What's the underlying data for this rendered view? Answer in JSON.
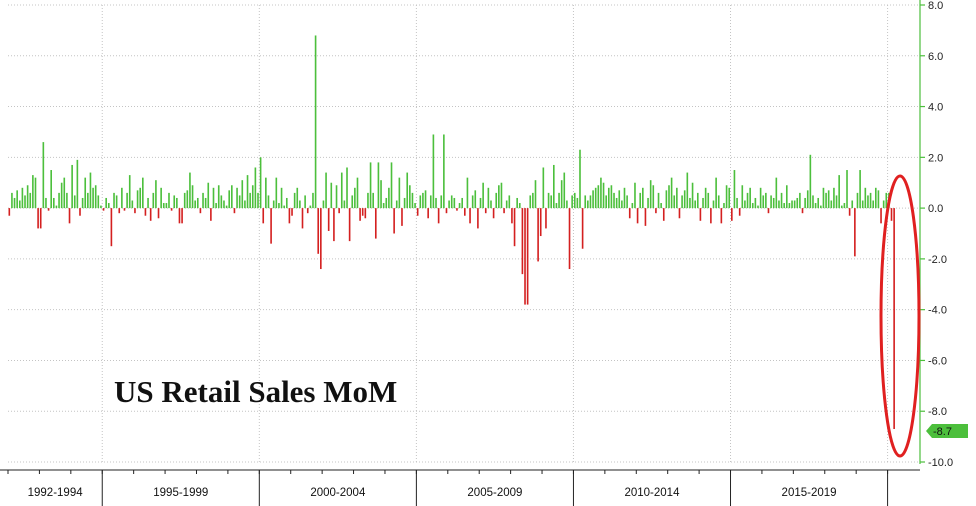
{
  "chart_data": {
    "type": "bar",
    "title": "US Retail Sales MoM",
    "xlabel": "",
    "ylabel": "",
    "ylim": [
      -10.0,
      8.0
    ],
    "yticks": [
      8.0,
      6.0,
      4.0,
      2.0,
      0.0,
      -2.0,
      -4.0,
      -6.0,
      -8.0,
      -10.0
    ],
    "ytick_labels": [
      "8.0",
      "6.0",
      "4.0",
      "2.0",
      "0.0",
      "-2.0",
      "-4.0",
      "-6.0",
      "-8.0",
      "-10.0"
    ],
    "x_start": "1992-01",
    "x_end": "2020-12",
    "period_labels": [
      "1992-1994",
      "1995-1999",
      "2000-2004",
      "2005-2009",
      "2010-2014",
      "2015-2019"
    ],
    "last_value_label": "-8.7",
    "positive_color": "#4cbf3c",
    "negative_color": "#d42020",
    "axis_color": "#4cbf3c",
    "highlight": {
      "shape": "ellipse",
      "color": "#e02020",
      "around_month": "2020-03"
    },
    "months": [
      "1992-01",
      "1992-02",
      "1992-03",
      "1992-04",
      "1992-05",
      "1992-06",
      "1992-07",
      "1992-08",
      "1992-09",
      "1992-10",
      "1992-11",
      "1992-12",
      "1993-01",
      "1993-02",
      "1993-03",
      "1993-04",
      "1993-05",
      "1993-06",
      "1993-07",
      "1993-08",
      "1993-09",
      "1993-10",
      "1993-11",
      "1993-12",
      "1994-01",
      "1994-02",
      "1994-03",
      "1994-04",
      "1994-05",
      "1994-06",
      "1994-07",
      "1994-08",
      "1994-09",
      "1994-10",
      "1994-11",
      "1994-12",
      "1995-01",
      "1995-02",
      "1995-03",
      "1995-04",
      "1995-05",
      "1995-06",
      "1995-07",
      "1995-08",
      "1995-09",
      "1995-10",
      "1995-11",
      "1995-12",
      "1996-01",
      "1996-02",
      "1996-03",
      "1996-04",
      "1996-05",
      "1996-06",
      "1996-07",
      "1996-08",
      "1996-09",
      "1996-10",
      "1996-11",
      "1996-12",
      "1997-01",
      "1997-02",
      "1997-03",
      "1997-04",
      "1997-05",
      "1997-06",
      "1997-07",
      "1997-08",
      "1997-09",
      "1997-10",
      "1997-11",
      "1997-12",
      "1998-01",
      "1998-02",
      "1998-03",
      "1998-04",
      "1998-05",
      "1998-06",
      "1998-07",
      "1998-08",
      "1998-09",
      "1998-10",
      "1998-11",
      "1998-12",
      "1999-01",
      "1999-02",
      "1999-03",
      "1999-04",
      "1999-05",
      "1999-06",
      "1999-07",
      "1999-08",
      "1999-09",
      "1999-10",
      "1999-11",
      "1999-12",
      "2000-01",
      "2000-02",
      "2000-03",
      "2000-04",
      "2000-05",
      "2000-06",
      "2000-07",
      "2000-08",
      "2000-09",
      "2000-10",
      "2000-11",
      "2000-12",
      "2001-01",
      "2001-02",
      "2001-03",
      "2001-04",
      "2001-05",
      "2001-06",
      "2001-07",
      "2001-08",
      "2001-09",
      "2001-10",
      "2001-11",
      "2001-12",
      "2002-01",
      "2002-02",
      "2002-03",
      "2002-04",
      "2002-05",
      "2002-06",
      "2002-07",
      "2002-08",
      "2002-09",
      "2002-10",
      "2002-11",
      "2002-12",
      "2003-01",
      "2003-02",
      "2003-03",
      "2003-04",
      "2003-05",
      "2003-06",
      "2003-07",
      "2003-08",
      "2003-09",
      "2003-10",
      "2003-11",
      "2003-12",
      "2004-01",
      "2004-02",
      "2004-03",
      "2004-04",
      "2004-05",
      "2004-06",
      "2004-07",
      "2004-08",
      "2004-09",
      "2004-10",
      "2004-11",
      "2004-12",
      "2005-01",
      "2005-02",
      "2005-03",
      "2005-04",
      "2005-05",
      "2005-06",
      "2005-07",
      "2005-08",
      "2005-09",
      "2005-10",
      "2005-11",
      "2005-12",
      "2006-01",
      "2006-02",
      "2006-03",
      "2006-04",
      "2006-05",
      "2006-06",
      "2006-07",
      "2006-08",
      "2006-09",
      "2006-10",
      "2006-11",
      "2006-12",
      "2007-01",
      "2007-02",
      "2007-03",
      "2007-04",
      "2007-05",
      "2007-06",
      "2007-07",
      "2007-08",
      "2007-09",
      "2007-10",
      "2007-11",
      "2007-12",
      "2008-01",
      "2008-02",
      "2008-03",
      "2008-04",
      "2008-05",
      "2008-06",
      "2008-07",
      "2008-08",
      "2008-09",
      "2008-10",
      "2008-11",
      "2008-12",
      "2009-01",
      "2009-02",
      "2009-03",
      "2009-04",
      "2009-05",
      "2009-06",
      "2009-07",
      "2009-08",
      "2009-09",
      "2009-10",
      "2009-11",
      "2009-12",
      "2010-01",
      "2010-02",
      "2010-03",
      "2010-04",
      "2010-05",
      "2010-06",
      "2010-07",
      "2010-08",
      "2010-09",
      "2010-10",
      "2010-11",
      "2010-12",
      "2011-01",
      "2011-02",
      "2011-03",
      "2011-04",
      "2011-05",
      "2011-06",
      "2011-07",
      "2011-08",
      "2011-09",
      "2011-10",
      "2011-11",
      "2011-12",
      "2012-01",
      "2012-02",
      "2012-03",
      "2012-04",
      "2012-05",
      "2012-06",
      "2012-07",
      "2012-08",
      "2012-09",
      "2012-10",
      "2012-11",
      "2012-12",
      "2013-01",
      "2013-02",
      "2013-03",
      "2013-04",
      "2013-05",
      "2013-06",
      "2013-07",
      "2013-08",
      "2013-09",
      "2013-10",
      "2013-11",
      "2013-12",
      "2014-01",
      "2014-02",
      "2014-03",
      "2014-04",
      "2014-05",
      "2014-06",
      "2014-07",
      "2014-08",
      "2014-09",
      "2014-10",
      "2014-11",
      "2014-12",
      "2015-01",
      "2015-02",
      "2015-03",
      "2015-04",
      "2015-05",
      "2015-06",
      "2015-07",
      "2015-08",
      "2015-09",
      "2015-10",
      "2015-11",
      "2015-12",
      "2016-01",
      "2016-02",
      "2016-03",
      "2016-04",
      "2016-05",
      "2016-06",
      "2016-07",
      "2016-08",
      "2016-09",
      "2016-10",
      "2016-11",
      "2016-12",
      "2017-01",
      "2017-02",
      "2017-03",
      "2017-04",
      "2017-05",
      "2017-06",
      "2017-07",
      "2017-08",
      "2017-09",
      "2017-10",
      "2017-11",
      "2017-12",
      "2018-01",
      "2018-02",
      "2018-03",
      "2018-04",
      "2018-05",
      "2018-06",
      "2018-07",
      "2018-08",
      "2018-09",
      "2018-10",
      "2018-11",
      "2018-12",
      "2019-01",
      "2019-02",
      "2019-03",
      "2019-04",
      "2019-05",
      "2019-06",
      "2019-07",
      "2019-08",
      "2019-09",
      "2019-10",
      "2019-11",
      "2019-12",
      "2020-01",
      "2020-02",
      "2020-03"
    ],
    "values": [
      -0.3,
      0.6,
      0.4,
      0.7,
      0.3,
      0.8,
      0.5,
      0.9,
      0.6,
      1.3,
      1.2,
      -0.8,
      -0.8,
      2.6,
      0.4,
      -0.1,
      1.5,
      0.4,
      0.1,
      0.6,
      1.0,
      1.2,
      0.6,
      -0.6,
      1.7,
      0.5,
      1.9,
      -0.3,
      0.4,
      1.2,
      0.6,
      1.4,
      0.8,
      0.9,
      0.5,
      0.1,
      -0.1,
      0.4,
      0.2,
      -1.5,
      0.6,
      0.5,
      -0.2,
      0.8,
      -0.1,
      0.6,
      1.3,
      0.3,
      -0.2,
      0.7,
      0.8,
      1.2,
      -0.3,
      0.4,
      -0.5,
      0.6,
      1.1,
      -0.4,
      0.8,
      0.2,
      0.2,
      0.6,
      -0.1,
      0.5,
      0.4,
      -0.6,
      -0.6,
      0.6,
      0.7,
      1.4,
      0.9,
      0.3,
      0.4,
      -0.2,
      0.6,
      0.4,
      1.0,
      -0.5,
      0.8,
      0.2,
      0.9,
      0.5,
      0.3,
      0.1,
      0.7,
      0.9,
      -0.2,
      0.8,
      0.5,
      1.1,
      0.3,
      1.3,
      0.6,
      0.9,
      1.6,
      0.6,
      2.0,
      -0.6,
      1.2,
      0.5,
      -1.4,
      0.3,
      1.2,
      0.2,
      0.8,
      0.1,
      0.4,
      -0.6,
      -0.3,
      0.6,
      0.8,
      0.3,
      -0.8,
      0.5,
      -0.2,
      0.1,
      0.6,
      6.8,
      -1.8,
      -2.4,
      0.3,
      1.4,
      -0.9,
      1.0,
      -1.3,
      0.9,
      -0.2,
      1.4,
      0.3,
      1.6,
      -1.3,
      0.5,
      0.8,
      1.2,
      -0.5,
      -0.3,
      -0.4,
      0.6,
      1.8,
      0.6,
      -1.2,
      1.8,
      1.1,
      0.2,
      0.4,
      0.8,
      1.8,
      -1.0,
      0.3,
      1.2,
      -0.7,
      0.4,
      1.4,
      0.9,
      0.6,
      0.2,
      -0.3,
      0.5,
      0.6,
      0.7,
      -0.4,
      0.5,
      2.9,
      0.4,
      -0.6,
      0.5,
      2.9,
      -0.2,
      0.3,
      0.5,
      0.4,
      -0.1,
      0.2,
      0.4,
      -0.3,
      1.2,
      -0.6,
      0.5,
      0.7,
      -0.8,
      0.4,
      1.0,
      -0.2,
      0.8,
      0.3,
      -0.4,
      0.6,
      0.9,
      1.0,
      -0.2,
      0.3,
      0.5,
      -0.6,
      -1.5,
      0.4,
      0.2,
      -2.6,
      -3.8,
      -3.8,
      0.5,
      0.6,
      1.1,
      -2.1,
      -1.1,
      1.6,
      -0.8,
      0.6,
      0.5,
      1.7,
      0.2,
      0.6,
      1.1,
      1.4,
      0.3,
      -2.4,
      0.5,
      0.6,
      0.4,
      2.3,
      -1.6,
      0.5,
      0.3,
      0.5,
      0.7,
      0.8,
      0.9,
      1.2,
      1.0,
      0.5,
      0.8,
      0.9,
      0.6,
      0.4,
      0.7,
      0.3,
      0.8,
      0.5,
      -0.4,
      0.2,
      1.0,
      -0.6,
      0.6,
      0.8,
      -0.7,
      0.4,
      1.1,
      0.9,
      -0.2,
      0.6,
      0.2,
      -0.5,
      0.7,
      0.9,
      1.2,
      0.5,
      0.8,
      -0.4,
      0.5,
      0.7,
      1.4,
      0.4,
      1.0,
      0.3,
      0.6,
      -0.5,
      0.4,
      0.8,
      0.6,
      -0.6,
      0.3,
      1.2,
      0.5,
      -0.6,
      0.2,
      0.9,
      0.8,
      -0.5,
      1.5,
      0.4,
      -0.3,
      0.9,
      0.3,
      0.6,
      0.8,
      0.2,
      0.4,
      0.1,
      0.8,
      0.5,
      0.6,
      -0.2,
      0.5,
      0.4,
      1.2,
      0.3,
      0.6,
      0.2,
      0.9,
      0.2,
      0.3,
      0.3,
      0.4,
      0.6,
      -0.2,
      0.4,
      0.7,
      2.1,
      0.5,
      0.2,
      0.4,
      0.1,
      0.8,
      0.6,
      0.7,
      0.3,
      0.8,
      0.5,
      1.3,
      0.1,
      0.2,
      1.5,
      -0.3,
      0.3,
      -1.9,
      0.6,
      1.5,
      0.3,
      0.8,
      0.5,
      0.6,
      0.3,
      0.8,
      0.7,
      -0.6,
      0.3,
      0.6,
      0.6,
      -0.5,
      -8.7
    ]
  }
}
